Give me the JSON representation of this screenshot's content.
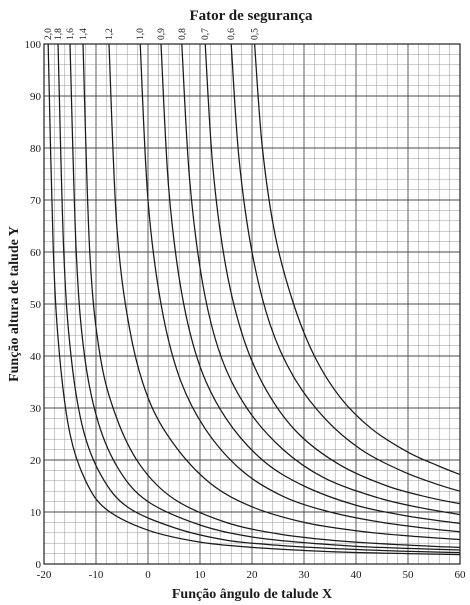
{
  "chart_data": {
    "type": "line",
    "title": "Fator de segurança",
    "xlabel": "Função ângulo de talude X",
    "ylabel": "Função altura de talude Y",
    "xlim": [
      -20,
      60
    ],
    "ylim": [
      0,
      100
    ],
    "x_major_ticks": [
      -20,
      -10,
      0,
      10,
      20,
      30,
      40,
      50,
      60
    ],
    "x_tick_labels": [
      "-20",
      "-10",
      "0",
      "10",
      "20",
      "30",
      "40",
      "50",
      "60"
    ],
    "y_major_ticks": [
      0,
      10,
      20,
      30,
      40,
      50,
      60,
      70,
      80,
      90,
      100
    ],
    "y_tick_labels": [
      "0",
      "10",
      "20",
      "30",
      "40",
      "50",
      "60",
      "70",
      "80",
      "90",
      "100"
    ],
    "grid": true,
    "series": [
      {
        "name": "2,0",
        "x": [
          -19.2,
          -18.2,
          -17.0,
          -15.0,
          -12.0,
          -8.0,
          0,
          10,
          20,
          30,
          40,
          50,
          60
        ],
        "values": [
          100,
          60,
          40,
          25,
          16,
          10.5,
          6.5,
          4.2,
          3.2,
          2.6,
          2.2,
          2.0,
          1.8
        ]
      },
      {
        "name": "1,8",
        "x": [
          -17.3,
          -16.2,
          -14.8,
          -12.5,
          -9.0,
          -4.0,
          5,
          15,
          25,
          35,
          45,
          55,
          60
        ],
        "values": [
          100,
          60,
          40,
          26,
          17,
          11,
          7,
          4.6,
          3.6,
          3.0,
          2.6,
          2.3,
          2.2
        ]
      },
      {
        "name": "1,6",
        "x": [
          -15.0,
          -13.8,
          -12.2,
          -9.5,
          -5.5,
          0,
          10,
          20,
          30,
          40,
          50,
          60
        ],
        "values": [
          100,
          60,
          40,
          27,
          18,
          12,
          7.5,
          5.2,
          4.1,
          3.4,
          3.0,
          2.7
        ]
      },
      {
        "name": "1,4",
        "x": [
          -12.5,
          -11.2,
          -9.2,
          -6.0,
          -1.5,
          5,
          15,
          25,
          35,
          45,
          55,
          60
        ],
        "values": [
          100,
          60,
          40,
          28,
          19,
          12.5,
          8,
          5.8,
          4.6,
          3.9,
          3.4,
          3.2
        ]
      },
      {
        "name": "1,2",
        "x": [
          -7.5,
          -6.0,
          -3.5,
          0,
          5,
          12,
          20,
          30,
          40,
          50,
          60
        ],
        "values": [
          100,
          65,
          45,
          32,
          23,
          15.5,
          11,
          8,
          6.4,
          5.4,
          4.7
        ]
      },
      {
        "name": "1,0",
        "x": [
          -1.5,
          0,
          2.5,
          6,
          11,
          18,
          26,
          35,
          45,
          55,
          60
        ],
        "values": [
          100,
          70,
          50,
          36,
          26,
          18,
          13,
          10,
          8,
          6.7,
          6.2
        ]
      },
      {
        "name": "0,9",
        "x": [
          2.5,
          4.0,
          6.5,
          10,
          15,
          22,
          30,
          40,
          50,
          60
        ],
        "values": [
          100,
          72,
          52,
          38,
          28,
          20,
          15,
          11.3,
          9.2,
          7.8
        ]
      },
      {
        "name": "0,8",
        "x": [
          6.5,
          8.0,
          10.5,
          14,
          19,
          26,
          34,
          44,
          52,
          60
        ],
        "values": [
          100,
          74,
          54,
          40,
          30,
          22,
          16.5,
          12.8,
          10.9,
          9.5
        ]
      },
      {
        "name": "0,7",
        "x": [
          11.0,
          12.5,
          15.0,
          18.5,
          23,
          29,
          37,
          46,
          54,
          60
        ],
        "values": [
          100,
          76,
          57,
          43,
          33,
          25,
          19,
          15,
          12.8,
          11.6
        ]
      },
      {
        "name": "0,6",
        "x": [
          16.0,
          17.5,
          20.0,
          23.5,
          28,
          34,
          41,
          49,
          56,
          60
        ],
        "values": [
          100,
          78,
          60,
          46,
          36,
          28,
          22,
          17.8,
          15.2,
          14.0
        ]
      },
      {
        "name": "0,5",
        "x": [
          20.5,
          22.0,
          24.5,
          28,
          32,
          37,
          43,
          50,
          56,
          60
        ],
        "values": [
          100,
          80,
          63,
          50,
          40,
          32,
          26,
          21.5,
          18.8,
          17.2
        ]
      }
    ]
  }
}
